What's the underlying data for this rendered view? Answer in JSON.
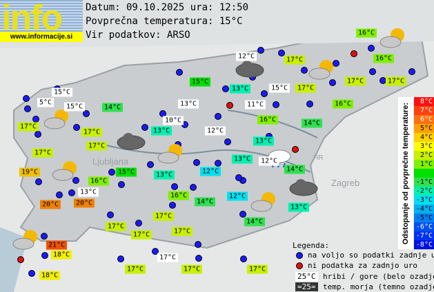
{
  "logo": {
    "word": "info",
    "url": "www.informacije.si"
  },
  "header": {
    "date_line": "Datum: 09.10.2025 ura: 12:50",
    "avg_line": "Povprečna temperatura: 15°C",
    "source_line": "Vir podatkov: ARSO"
  },
  "map_labels_faded": [
    "Ljubljana",
    "Zagreb",
    "HR"
  ],
  "stations": [
    {
      "t": "16°C",
      "c": "#80f000"
    },
    {
      "t": "16°C",
      "c": "#80f000"
    },
    {
      "t": "17°C",
      "c": "#c8f000"
    },
    {
      "t": "17°C",
      "c": "#c8f000"
    },
    {
      "t": "17°C",
      "c": "#c8f000"
    },
    {
      "t": "12°C",
      "c": "#ffffff"
    },
    {
      "t": "15°C",
      "c": "#00e000"
    },
    {
      "t": "13°C",
      "c": "#00f0b0"
    },
    {
      "t": "15°C",
      "c": "#ffffff"
    },
    {
      "t": "17°C",
      "c": "#c8f000"
    },
    {
      "t": "16°C",
      "c": "#80f000"
    },
    {
      "t": "15°C",
      "c": "#ffffff"
    },
    {
      "t": "5°C",
      "c": "#ffffff"
    },
    {
      "t": "15°C",
      "c": "#ffffff"
    },
    {
      "t": "14°C",
      "c": "#30e050"
    },
    {
      "t": "13°C",
      "c": "#ffffff"
    },
    {
      "t": "11°C",
      "c": "#ffffff"
    },
    {
      "t": "17°C",
      "c": "#c8f000"
    },
    {
      "t": "17°C",
      "c": "#c8f000"
    },
    {
      "t": "10°C",
      "c": "#ffffff"
    },
    {
      "t": "13°C",
      "c": "#00f0b0"
    },
    {
      "t": "16°C",
      "c": "#80f000"
    },
    {
      "t": "14°C",
      "c": "#30e050"
    },
    {
      "t": "12°C",
      "c": "#ffffff"
    },
    {
      "t": "17°C",
      "c": "#c8f000"
    },
    {
      "t": "17°C",
      "c": "#c8f000"
    },
    {
      "t": "13°C",
      "c": "#00f0b0"
    },
    {
      "t": "13°C",
      "c": "#00f0b0"
    },
    {
      "t": "12°C",
      "c": "#ffffff"
    },
    {
      "t": "14°C",
      "c": "#30e050"
    },
    {
      "t": "19°C",
      "c": "#f0c000"
    },
    {
      "t": "15°C",
      "c": "#00e000"
    },
    {
      "t": "13°C",
      "c": "#00f0b0"
    },
    {
      "t": "12°C",
      "c": "#00e0f0"
    },
    {
      "t": "16°C",
      "c": "#80f000"
    },
    {
      "t": "13°C",
      "c": "#ffffff"
    },
    {
      "t": "20°C",
      "c": "#f08000"
    },
    {
      "t": "20°C",
      "c": "#f08000"
    },
    {
      "t": "16°C",
      "c": "#80f000"
    },
    {
      "t": "14°C",
      "c": "#30e050"
    },
    {
      "t": "12°C",
      "c": "#00e0f0"
    },
    {
      "t": "13°C",
      "c": "#00f0b0"
    },
    {
      "t": "14°C",
      "c": "#30e050"
    },
    {
      "t": "17°C",
      "c": "#c8f000"
    },
    {
      "t": "17°C",
      "c": "#c8f000"
    },
    {
      "t": "17°C",
      "c": "#c8f000"
    },
    {
      "t": "17°C",
      "c": "#c8f000"
    },
    {
      "t": "21°C",
      "c": "#f05000"
    },
    {
      "t": "18°C",
      "c": "#f0f000"
    },
    {
      "t": "17°C",
      "c": "#ffffff"
    },
    {
      "t": "17°C",
      "c": "#c8f000"
    },
    {
      "t": "17°C",
      "c": "#c8f000"
    },
    {
      "t": "17°C",
      "c": "#c8f000"
    },
    {
      "t": "18°C",
      "c": "#f0f000"
    }
  ],
  "weather_icons": [
    "cloud-sun",
    "cloud-sun",
    "cloud-sun",
    "cloud-sun",
    "cloud-sun",
    "cloud-sun",
    "cloud-sun",
    "cloud",
    "cloud",
    "cloud",
    "rain-cloud"
  ],
  "scale": {
    "title": "Odstopanje od povprečne temperature:",
    "steps": [
      {
        "t": "8°C",
        "c": "#ff1010",
        "f": "#fff"
      },
      {
        "t": "7°C",
        "c": "#ff4010",
        "f": "#fff"
      },
      {
        "t": "6°C",
        "c": "#ff7010",
        "f": "#fff"
      },
      {
        "t": "5°C",
        "c": "#ffa000",
        "f": "#000"
      },
      {
        "t": "4°C",
        "c": "#ffd000",
        "f": "#000"
      },
      {
        "t": "3°C",
        "c": "#ffff00",
        "f": "#000"
      },
      {
        "t": "2°C",
        "c": "#c8f000",
        "f": "#000"
      },
      {
        "t": "1°C",
        "c": "#80f000",
        "f": "#000"
      },
      {
        "t": "",
        "c": "#00e000",
        "f": "#000"
      },
      {
        "t": "-1°C",
        "c": "#30e050",
        "f": "#000"
      },
      {
        "t": "-2°C",
        "c": "#00f0b0",
        "f": "#000"
      },
      {
        "t": "-3°C",
        "c": "#00e0f0",
        "f": "#000"
      },
      {
        "t": "-4°C",
        "c": "#00b0f0",
        "f": "#000"
      },
      {
        "t": "-5°C",
        "c": "#0080f0",
        "f": "#000"
      },
      {
        "t": "-6°C",
        "c": "#0050f0",
        "f": "#fff"
      },
      {
        "t": "-7°C",
        "c": "#0030f0",
        "f": "#fff"
      },
      {
        "t": "-8°C",
        "c": "#0010e0",
        "f": "#fff"
      }
    ]
  },
  "legend": {
    "title": "Legenda:",
    "available": "na voljo so podatki zadnje ure",
    "missing": "ni podatka za zadnjo uro",
    "mountain_sample": "25°C",
    "mountain": "hribi / gore (belo ozadje)",
    "sea_sample": "=25=",
    "sea": "temp. morja (temno ozadje)"
  },
  "colors": {
    "dot_available": "#1a1aff",
    "dot_missing": "#e01010"
  }
}
